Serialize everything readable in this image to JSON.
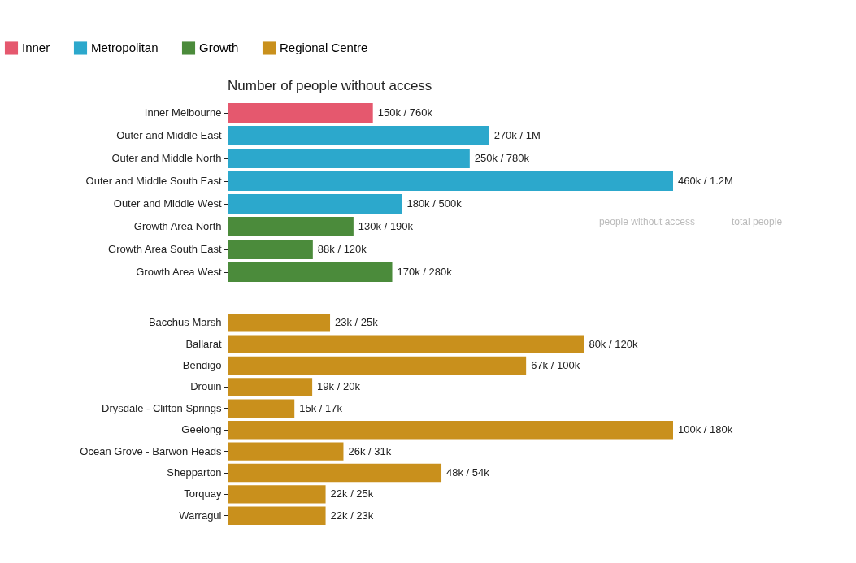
{
  "chart_data": [
    {
      "type": "bar",
      "orientation": "horizontal",
      "title": "Number of people without access",
      "legend": "top left",
      "categories": [
        "Inner Melbourne",
        "Outer and Middle East",
        "Outer and Middle North",
        "Outer and Middle South East",
        "Outer and Middle West",
        "Growth Area North",
        "Growth Area South East",
        "Growth Area West"
      ],
      "series": [
        {
          "name": "Inner",
          "color": "#e5586e",
          "values": [
            150000,
            null,
            null,
            null,
            null,
            null,
            null,
            null
          ],
          "value_labels": [
            "150k / 760k",
            null,
            null,
            null,
            null,
            null,
            null,
            null
          ]
        },
        {
          "name": "Metropolitan",
          "color": "#2ca8cc",
          "values": [
            null,
            270000,
            250000,
            460000,
            180000,
            null,
            null,
            null
          ],
          "value_labels": [
            null,
            "270k / 1M",
            "250k / 780k",
            "460k / 1.2M",
            "180k / 500k",
            null,
            null,
            null
          ]
        },
        {
          "name": "Growth",
          "color": "#4b8b3b",
          "values": [
            null,
            null,
            null,
            null,
            null,
            130000,
            88000,
            170000
          ],
          "value_labels": [
            null,
            null,
            null,
            null,
            null,
            "130k / 190k",
            "88k / 120k",
            "170k / 280k"
          ]
        }
      ],
      "annotations": [
        "people without access",
        "total people"
      ]
    },
    {
      "type": "bar",
      "orientation": "horizontal",
      "legend": "top left",
      "categories": [
        "Bacchus Marsh",
        "Ballarat",
        "Bendigo",
        "Drouin",
        "Drysdale - Clifton Springs",
        "Geelong",
        "Ocean Grove - Barwon Heads",
        "Shepparton",
        "Torquay",
        "Warragul"
      ],
      "series": [
        {
          "name": "Regional Centre",
          "color": "#c9901c",
          "values": [
            23000,
            80000,
            67000,
            19000,
            15000,
            100000,
            26000,
            48000,
            22000,
            22000
          ],
          "value_labels": [
            "23k / 25k",
            "80k / 120k",
            "67k / 100k",
            "19k / 20k",
            "15k / 17k",
            "100k / 180k",
            "26k / 31k",
            "48k / 54k",
            "22k / 25k",
            "22k / 23k"
          ]
        }
      ]
    }
  ]
}
